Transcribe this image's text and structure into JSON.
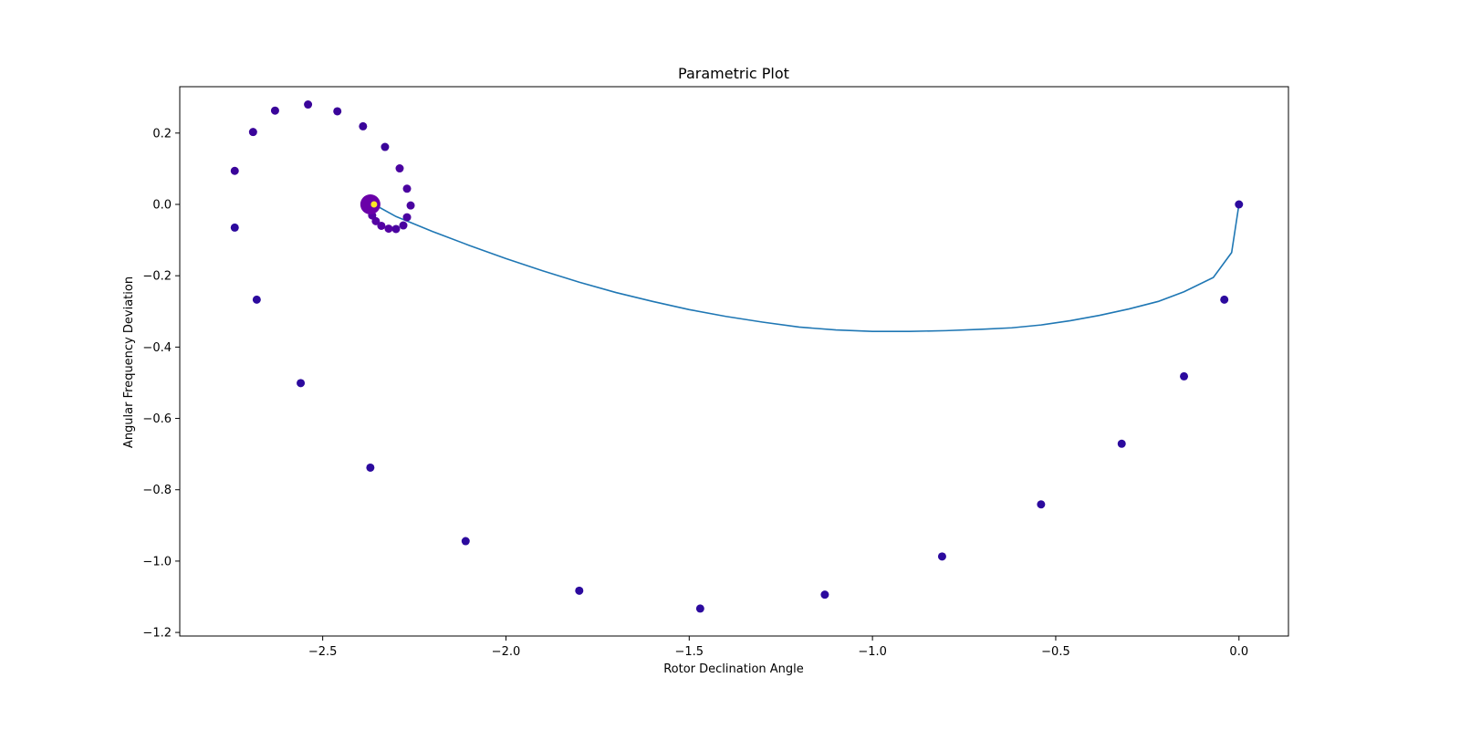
{
  "chart_data": {
    "type": "scatter",
    "title": "Parametric Plot",
    "xlabel": "Rotor Declination Angle",
    "ylabel": "Angular Frequency Deviation",
    "xlim": [
      -2.89,
      0.135
    ],
    "ylim": [
      -1.21,
      0.33
    ],
    "grid": false,
    "x_ticks": [
      {
        "value": -2.5,
        "label": "−2.5"
      },
      {
        "value": -2.0,
        "label": "−2.0"
      },
      {
        "value": -1.5,
        "label": "−1.5"
      },
      {
        "value": -1.0,
        "label": "−1.0"
      },
      {
        "value": -0.5,
        "label": "−0.5"
      },
      {
        "value": 0.0,
        "label": "0.0"
      }
    ],
    "y_ticks": [
      {
        "value": 0.2,
        "label": "0.2"
      },
      {
        "value": 0.0,
        "label": "0.0"
      },
      {
        "value": -0.2,
        "label": "−0.2"
      },
      {
        "value": -0.4,
        "label": "−0.4"
      },
      {
        "value": -0.6,
        "label": "−0.6"
      },
      {
        "value": -0.8,
        "label": "−0.8"
      },
      {
        "value": -1.0,
        "label": "−1.0"
      },
      {
        "value": -1.2,
        "label": "−1.2"
      }
    ],
    "line_series": {
      "color": "#1f77b4",
      "x": [
        0.0,
        -0.02,
        -0.07,
        -0.15,
        -0.22,
        -0.3,
        -0.38,
        -0.46,
        -0.54,
        -0.62,
        -0.7,
        -0.8,
        -0.9,
        -1.0,
        -1.1,
        -1.2,
        -1.3,
        -1.4,
        -1.5,
        -1.6,
        -1.7,
        -1.8,
        -1.9,
        -2.0,
        -2.1,
        -2.2,
        -2.3,
        -2.36
      ],
      "y": [
        0.0,
        -0.135,
        -0.205,
        -0.245,
        -0.272,
        -0.293,
        -0.311,
        -0.326,
        -0.338,
        -0.346,
        -0.35,
        -0.354,
        -0.356,
        -0.356,
        -0.352,
        -0.344,
        -0.33,
        -0.314,
        -0.295,
        -0.272,
        -0.247,
        -0.218,
        -0.186,
        -0.152,
        -0.115,
        -0.076,
        -0.034,
        0.0
      ]
    },
    "scatter_series": {
      "points": [
        {
          "x": 0.0,
          "y": 0.0,
          "color": "#2c0a9e",
          "size": 4.5
        },
        {
          "x": -0.04,
          "y": -0.267,
          "color": "#2c0a9e",
          "size": 4.5
        },
        {
          "x": -0.15,
          "y": -0.482,
          "color": "#2c0a9e",
          "size": 4.5
        },
        {
          "x": -0.32,
          "y": -0.671,
          "color": "#2c0a9e",
          "size": 4.5
        },
        {
          "x": -0.54,
          "y": -0.841,
          "color": "#2c0a9e",
          "size": 4.5
        },
        {
          "x": -0.81,
          "y": -0.987,
          "color": "#2c0a9e",
          "size": 4.5
        },
        {
          "x": -1.13,
          "y": -1.094,
          "color": "#2c0a9e",
          "size": 4.5
        },
        {
          "x": -1.47,
          "y": -1.133,
          "color": "#2c0a9e",
          "size": 4.5
        },
        {
          "x": -1.8,
          "y": -1.083,
          "color": "#2c0a9e",
          "size": 4.5
        },
        {
          "x": -2.11,
          "y": -0.944,
          "color": "#2c0a9e",
          "size": 4.5
        },
        {
          "x": -2.37,
          "y": -0.738,
          "color": "#2c0a9e",
          "size": 4.5
        },
        {
          "x": -2.56,
          "y": -0.501,
          "color": "#2c0a9e",
          "size": 4.5
        },
        {
          "x": -2.68,
          "y": -0.267,
          "color": "#2c0a9e",
          "size": 4.5
        },
        {
          "x": -2.74,
          "y": -0.065,
          "color": "#2c0a9e",
          "size": 4.5
        },
        {
          "x": -2.74,
          "y": 0.094,
          "color": "#3a049a",
          "size": 4.5
        },
        {
          "x": -2.69,
          "y": 0.203,
          "color": "#3a049a",
          "size": 4.5
        },
        {
          "x": -2.63,
          "y": 0.263,
          "color": "#3a049a",
          "size": 4.5
        },
        {
          "x": -2.54,
          "y": 0.28,
          "color": "#3a049a",
          "size": 4.5
        },
        {
          "x": -2.46,
          "y": 0.261,
          "color": "#3a049a",
          "size": 4.5
        },
        {
          "x": -2.39,
          "y": 0.219,
          "color": "#3a049a",
          "size": 4.5
        },
        {
          "x": -2.33,
          "y": 0.161,
          "color": "#3a049a",
          "size": 4.5
        },
        {
          "x": -2.29,
          "y": 0.101,
          "color": "#4a02a0",
          "size": 4.5
        },
        {
          "x": -2.27,
          "y": 0.044,
          "color": "#4a02a0",
          "size": 4.5
        },
        {
          "x": -2.26,
          "y": -0.003,
          "color": "#4a02a0",
          "size": 4.5
        },
        {
          "x": -2.27,
          "y": -0.036,
          "color": "#4a02a0",
          "size": 4.5
        },
        {
          "x": -2.28,
          "y": -0.059,
          "color": "#4a02a0",
          "size": 4.5
        },
        {
          "x": -2.3,
          "y": -0.069,
          "color": "#4a02a0",
          "size": 4.5
        },
        {
          "x": -2.32,
          "y": -0.068,
          "color": "#5402a3",
          "size": 4.5
        },
        {
          "x": -2.34,
          "y": -0.06,
          "color": "#5402a3",
          "size": 4.5
        },
        {
          "x": -2.355,
          "y": -0.047,
          "color": "#5402a3",
          "size": 4.5
        },
        {
          "x": -2.365,
          "y": -0.031,
          "color": "#5402a3",
          "size": 4.5
        },
        {
          "x": -2.37,
          "y": -0.017,
          "color": "#5402a3",
          "size": 4.5
        },
        {
          "x": -2.372,
          "y": -0.006,
          "color": "#5c01a6",
          "size": 4.5
        },
        {
          "x": -2.37,
          "y": 0.0,
          "color": "#6a00a8",
          "size": 11
        },
        {
          "x": -2.36,
          "y": 0.0,
          "color": "#fde725",
          "size": 3.5
        }
      ]
    }
  }
}
